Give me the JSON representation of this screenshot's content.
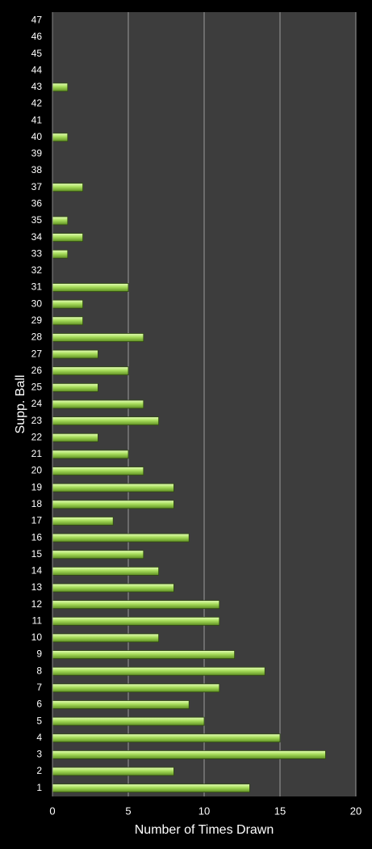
{
  "chart_data": {
    "type": "hbar",
    "x_label": "Number of Times Drawn",
    "y_label": "Supp. Ball",
    "categories": [
      "1",
      "2",
      "3",
      "4",
      "5",
      "6",
      "7",
      "8",
      "9",
      "10",
      "11",
      "12",
      "13",
      "14",
      "15",
      "16",
      "17",
      "18",
      "19",
      "20",
      "21",
      "22",
      "23",
      "24",
      "25",
      "26",
      "27",
      "28",
      "29",
      "30",
      "31",
      "32",
      "33",
      "34",
      "35",
      "36",
      "37",
      "38",
      "39",
      "40",
      "41",
      "42",
      "43",
      "44",
      "45",
      "46",
      "47"
    ],
    "values": [
      13,
      8,
      18,
      15,
      10,
      9,
      11,
      14,
      12,
      7,
      11,
      11,
      8,
      7,
      6,
      9,
      4,
      8,
      8,
      6,
      5,
      3,
      7,
      6,
      3,
      5,
      3,
      6,
      2,
      2,
      5,
      0,
      1,
      2,
      1,
      0,
      2,
      0,
      0,
      1,
      0,
      0,
      1,
      0,
      0,
      0,
      0
    ],
    "color": "#a6dc5a",
    "xlim": [
      0,
      20
    ],
    "xticks": [
      0,
      5,
      10,
      15,
      20
    ],
    "grid": true
  }
}
